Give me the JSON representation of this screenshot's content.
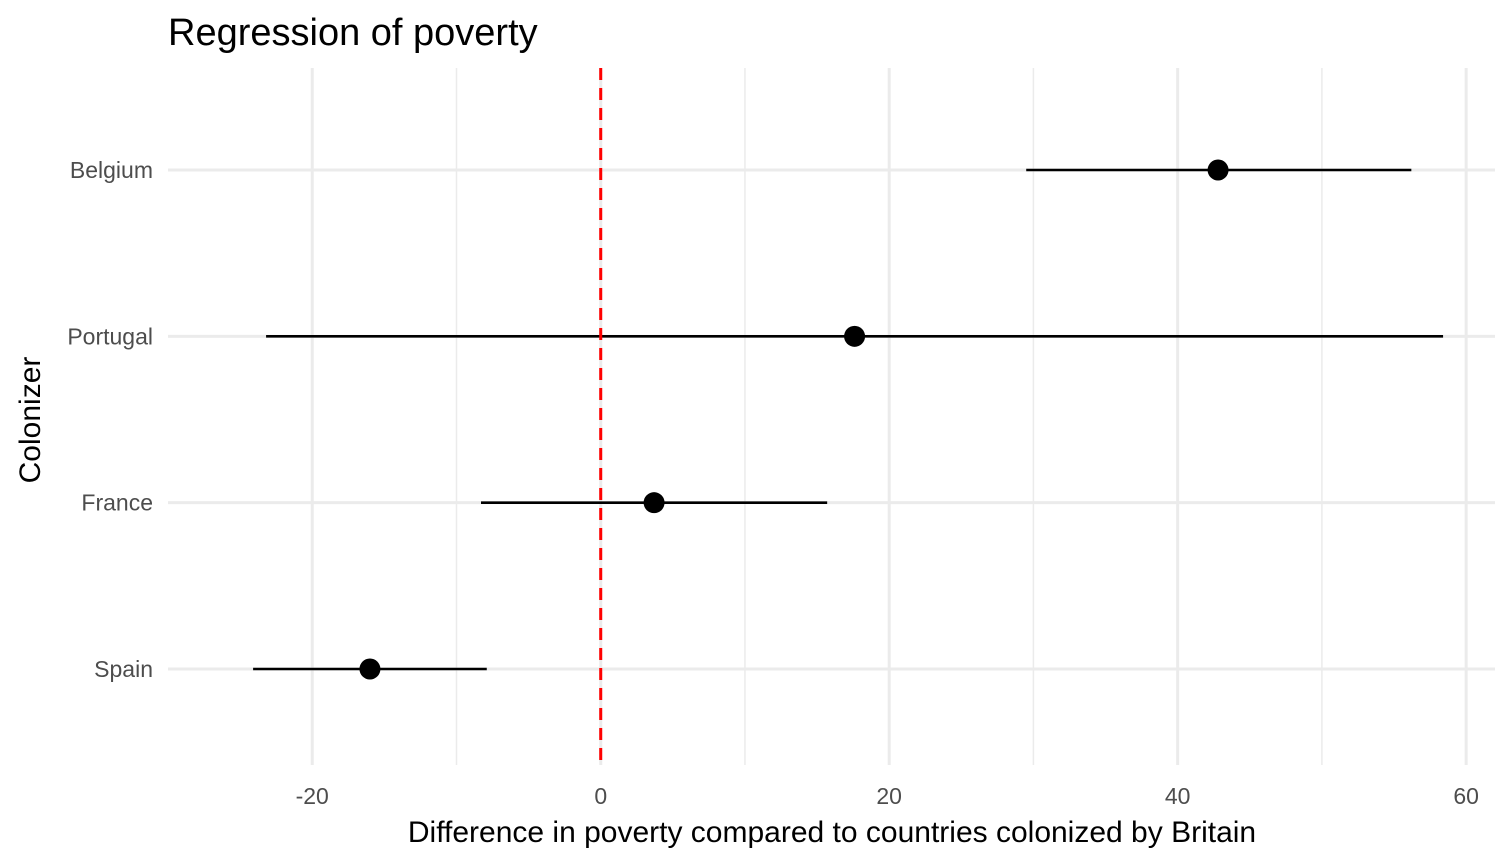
{
  "chart_data": {
    "type": "scatter",
    "subtype": "coefficient-plot",
    "title": "Regression of poverty",
    "xlabel": "Difference in poverty compared to countries colonized by Britain",
    "ylabel": "Colonizer",
    "xlim": [
      -30,
      62
    ],
    "x_ticks": [
      -20,
      0,
      20,
      40,
      60
    ],
    "x_tick_labels": [
      "-20",
      "0",
      "20",
      "40",
      "60"
    ],
    "x_minor_ticks": [
      -10,
      10,
      30,
      50
    ],
    "grid": true,
    "reference_line": {
      "x": 0,
      "style": "dashed",
      "color": "#ff0000"
    },
    "categories": [
      "Belgium",
      "Portugal",
      "France",
      "Spain"
    ],
    "points": [
      {
        "category": "Belgium",
        "estimate": 42.8,
        "lower": 29.5,
        "upper": 56.2
      },
      {
        "category": "Portugal",
        "estimate": 17.6,
        "lower": -23.2,
        "upper": 58.4
      },
      {
        "category": "France",
        "estimate": 3.7,
        "lower": -8.3,
        "upper": 15.7
      },
      {
        "category": "Spain",
        "estimate": -16.0,
        "lower": -24.1,
        "upper": -7.9
      }
    ],
    "colors": {
      "point": "#000000",
      "errorbar": "#000000",
      "grid": "#ebebeb",
      "reference": "#ff0000"
    }
  }
}
